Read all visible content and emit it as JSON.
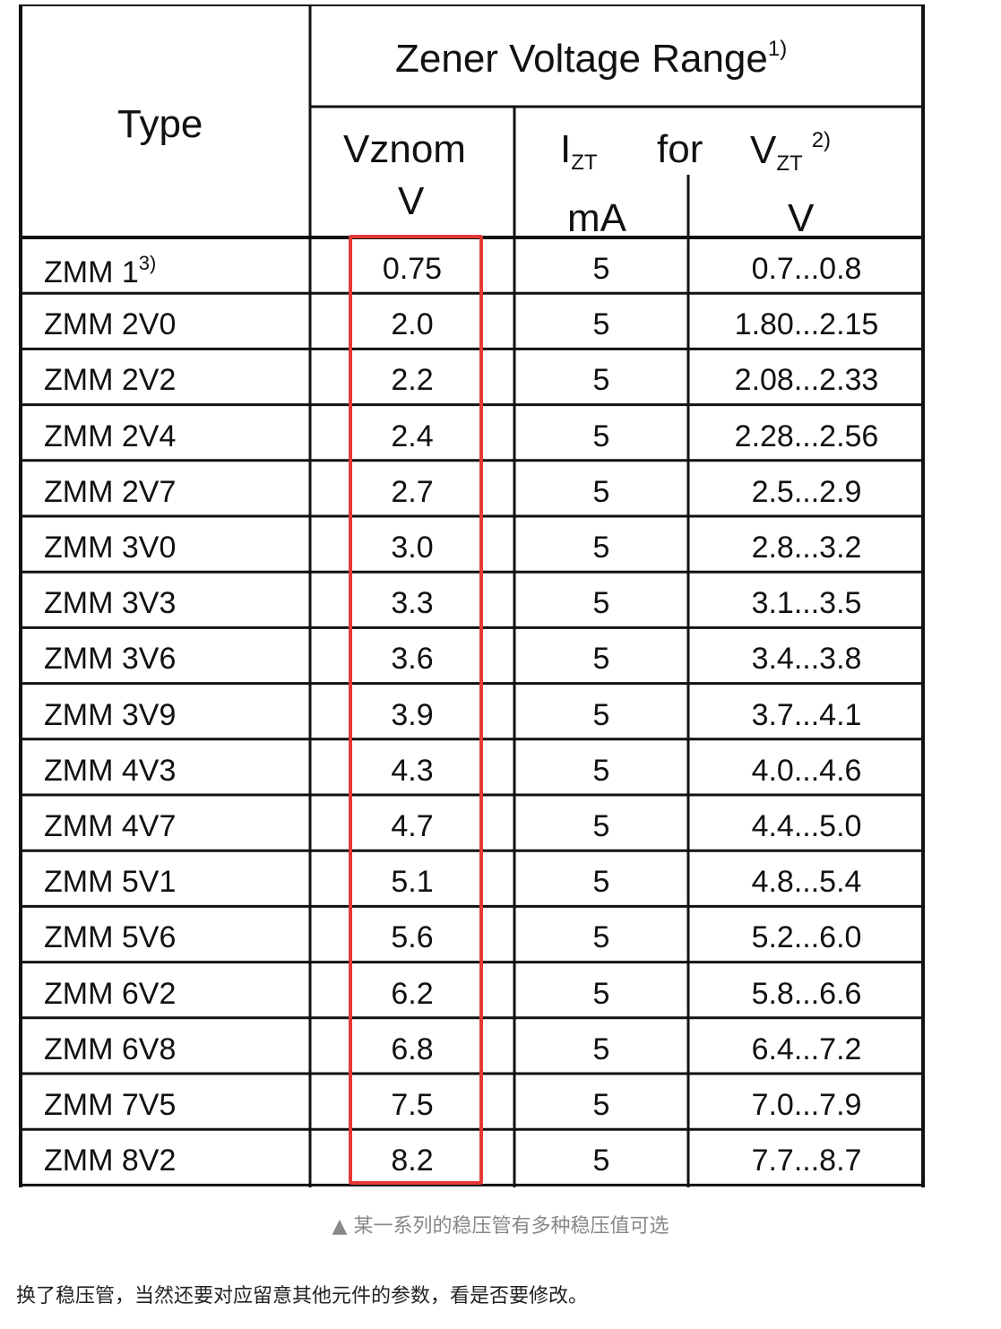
{
  "table": {
    "header": {
      "type": "Type",
      "group": "Zener Voltage Range",
      "group_note": "1)",
      "vznom": "Vznom",
      "vznom_unit": "V",
      "izt": "I",
      "izt_sub": "ZT",
      "for": "for",
      "vzt": "V",
      "vzt_sub": "ZT",
      "vzt_note": "2)",
      "izt_unit": "mA",
      "vzt_unit": "V"
    },
    "rows": [
      {
        "type": "ZMM 1",
        "note": "3)",
        "vznom": "0.75",
        "izt": "5",
        "vzt": "0.7...0.8"
      },
      {
        "type": "ZMM 2V0",
        "note": "",
        "vznom": "2.0",
        "izt": "5",
        "vzt": "1.80...2.15"
      },
      {
        "type": "ZMM 2V2",
        "note": "",
        "vznom": "2.2",
        "izt": "5",
        "vzt": "2.08...2.33"
      },
      {
        "type": "ZMM 2V4",
        "note": "",
        "vznom": "2.4",
        "izt": "5",
        "vzt": "2.28...2.56"
      },
      {
        "type": "ZMM 2V7",
        "note": "",
        "vznom": "2.7",
        "izt": "5",
        "vzt": "2.5...2.9"
      },
      {
        "type": "ZMM 3V0",
        "note": "",
        "vznom": "3.0",
        "izt": "5",
        "vzt": "2.8...3.2"
      },
      {
        "type": "ZMM 3V3",
        "note": "",
        "vznom": "3.3",
        "izt": "5",
        "vzt": "3.1...3.5"
      },
      {
        "type": "ZMM 3V6",
        "note": "",
        "vznom": "3.6",
        "izt": "5",
        "vzt": "3.4...3.8"
      },
      {
        "type": "ZMM 3V9",
        "note": "",
        "vznom": "3.9",
        "izt": "5",
        "vzt": "3.7...4.1"
      },
      {
        "type": "ZMM 4V3",
        "note": "",
        "vznom": "4.3",
        "izt": "5",
        "vzt": "4.0...4.6"
      },
      {
        "type": "ZMM 4V7",
        "note": "",
        "vznom": "4.7",
        "izt": "5",
        "vzt": "4.4...5.0"
      },
      {
        "type": "ZMM 5V1",
        "note": "",
        "vznom": "5.1",
        "izt": "5",
        "vzt": "4.8...5.4"
      },
      {
        "type": "ZMM 5V6",
        "note": "",
        "vznom": "5.6",
        "izt": "5",
        "vzt": "5.2...6.0"
      },
      {
        "type": "ZMM 6V2",
        "note": "",
        "vznom": "6.2",
        "izt": "5",
        "vzt": "5.8...6.6"
      },
      {
        "type": "ZMM 6V8",
        "note": "",
        "vznom": "6.8",
        "izt": "5",
        "vzt": "6.4...7.2"
      },
      {
        "type": "ZMM 7V5",
        "note": "",
        "vznom": "7.5",
        "izt": "5",
        "vzt": "7.0...7.9"
      },
      {
        "type": "ZMM 8V2",
        "note": "",
        "vznom": "8.2",
        "izt": "5",
        "vzt": "7.7...8.7"
      }
    ]
  },
  "highlight_color": "#e53935",
  "caption": "▲ 某一系列的稳压管有多种稳压值可选",
  "paragraph": "换了稳压管，当然还要对应留意其他元件的参数，看是否要修改。"
}
